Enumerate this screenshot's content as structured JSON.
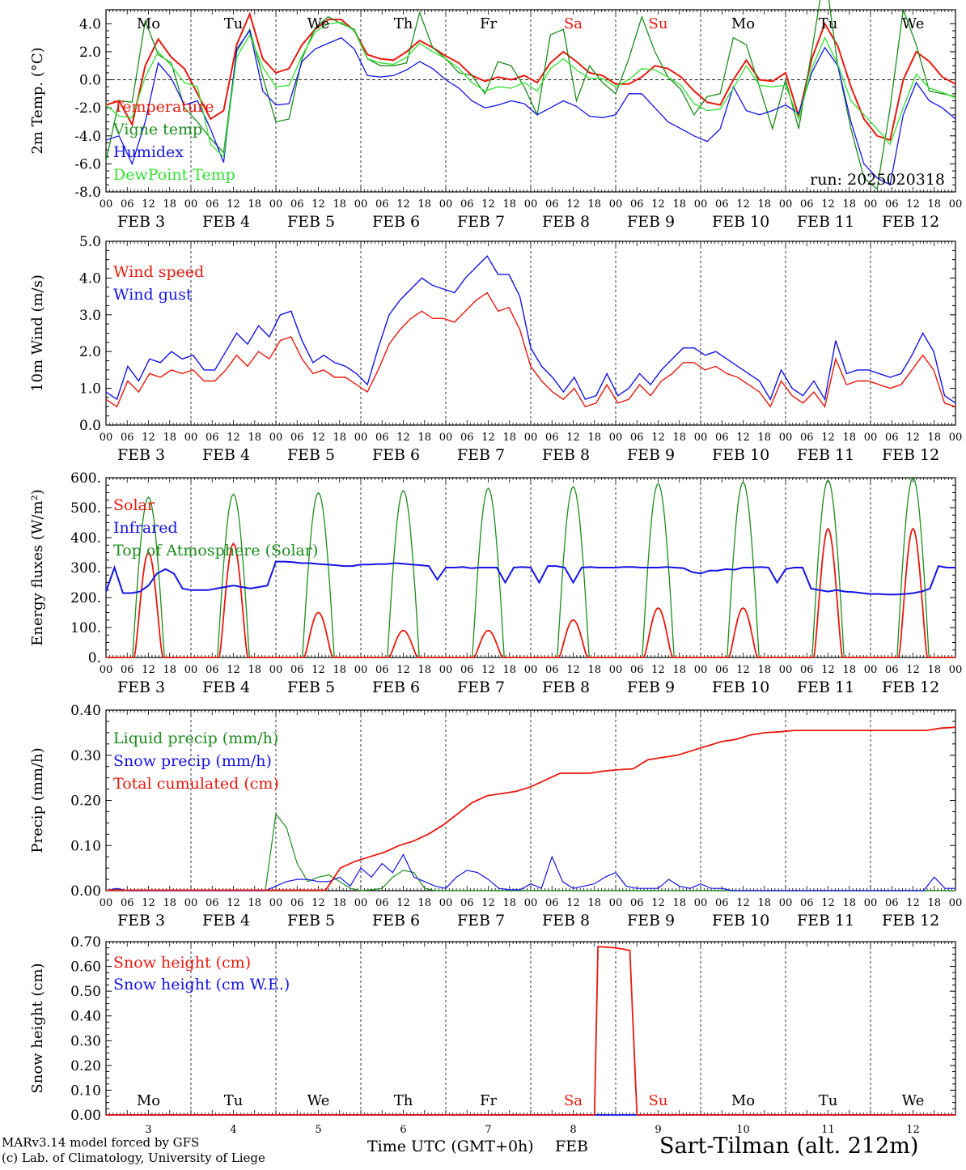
{
  "colors": {
    "red": "#e8190f",
    "green": "#1e8c1e",
    "blue": "#1414e6",
    "lightgreen": "#33e033",
    "weekend": "#e8190f",
    "text": "#000000"
  },
  "days": {
    "abbr": [
      "Mo",
      "Tu",
      "We",
      "Th",
      "Fr",
      "Sa",
      "Su",
      "Mo",
      "Tu",
      "We"
    ],
    "weekend_index": [
      5,
      6
    ],
    "numbers": [
      "3",
      "4",
      "5",
      "6",
      "7",
      "8",
      "9",
      "10",
      "11",
      "12"
    ],
    "date_labels": [
      "FEB  3",
      "FEB  4",
      "FEB  5",
      "FEB  6",
      "FEB  7",
      "FEB  8",
      "FEB  9",
      "FEB 10",
      "FEB 11",
      "FEB 12"
    ],
    "hour_ticks": [
      "00",
      "06",
      "12",
      "18"
    ],
    "final_tick": "00"
  },
  "footer": {
    "credit_line1": "MARv3.14 model forced by GFS",
    "credit_line2": "(c) Lab. of Climatology, University of Liege",
    "xaxis_label": "Time UTC (GMT+0h)",
    "month": "FEB",
    "station": "Sart-Tilman (alt. 212m)"
  },
  "chart_data": [
    {
      "type": "line",
      "ylabel": "2m Temp. (°C)",
      "ylim": [
        -8,
        5
      ],
      "ytick_values": [
        -8,
        -6,
        -4,
        -2,
        0,
        2,
        4
      ],
      "ytick_labels": [
        "-8.0",
        "-6.0",
        "-4.0",
        "-2.0",
        "0.0",
        "2.0",
        "4.0"
      ],
      "zero_line": true,
      "run_label": "run: 2025020318",
      "x_hours": [
        0,
        3,
        6,
        9,
        12,
        15,
        18,
        21,
        24,
        27,
        30,
        33,
        36,
        39,
        42,
        45,
        48,
        51,
        54,
        57,
        60,
        63,
        66,
        69,
        72,
        75,
        78,
        81,
        84,
        87,
        90,
        93,
        96,
        99,
        102,
        105,
        108,
        111,
        114,
        117,
        120,
        123,
        126,
        129,
        132,
        135,
        138,
        141,
        144,
        147,
        150,
        153,
        156,
        159,
        162,
        165,
        168,
        171,
        174,
        177,
        180,
        183,
        186,
        189,
        192,
        195,
        198,
        201,
        204,
        207,
        210,
        213,
        216,
        219,
        222,
        225,
        228,
        231,
        234,
        237,
        240
      ],
      "series": [
        {
          "name": "Temperature",
          "color": "red",
          "values": [
            -1.8,
            -1.5,
            -3.2,
            1.0,
            2.9,
            1.6,
            0.8,
            -1.0,
            -2.8,
            -2.2,
            2.5,
            4.7,
            1.5,
            0.5,
            0.8,
            2.5,
            3.6,
            4.3,
            4.3,
            3.5,
            1.8,
            1.5,
            1.4,
            2.0,
            2.8,
            2.3,
            1.7,
            1.2,
            0.3,
            -0.1,
            0.2,
            0.0,
            0.3,
            -0.2,
            1.2,
            2.0,
            1.3,
            0.5,
            0.3,
            -0.3,
            -0.3,
            0.2,
            1.0,
            0.8,
            0.2,
            -0.8,
            -1.6,
            -1.8,
            0.0,
            1.4,
            0.0,
            -0.1,
            0.5,
            -2.6,
            1.5,
            4.0,
            2.4,
            -0.5,
            -2.8,
            -4.0,
            -4.3,
            0.0,
            2.0,
            1.3,
            0.2,
            -0.3
          ]
        },
        {
          "name": "Vigne temp",
          "color": "green",
          "values": [
            -5.8,
            -1.5,
            -1.6,
            4.2,
            1.8,
            1.2,
            -2.0,
            -3.0,
            -4.2,
            -5.2,
            2.0,
            3.6,
            0.2,
            -3.0,
            -2.8,
            1.5,
            3.7,
            4.5,
            4.0,
            3.6,
            1.5,
            1.0,
            1.0,
            1.2,
            4.8,
            2.3,
            1.5,
            0.5,
            0.3,
            -1.0,
            1.3,
            1.0,
            -0.5,
            -2.5,
            3.2,
            3.6,
            -1.5,
            1.0,
            -0.2,
            -1.0,
            1.5,
            4.5,
            2.0,
            0.2,
            -0.7,
            -2.5,
            -1.2,
            -1.0,
            3.0,
            2.5,
            -0.5,
            -3.5,
            0.0,
            -3.5,
            2.0,
            7.8,
            1.0,
            -3.5,
            -7.0,
            -7.8,
            -2.0,
            5.0,
            2.5,
            -0.8,
            -1.0,
            -1.2
          ]
        },
        {
          "name": "Humidex",
          "color": "blue",
          "values": [
            -4.3,
            -4.0,
            -6.0,
            -3.0,
            1.2,
            0.1,
            -1.8,
            -1.5,
            -3.5,
            -5.9,
            2.2,
            3.5,
            -0.8,
            -1.8,
            -1.7,
            1.3,
            2.2,
            2.6,
            3.0,
            2.2,
            0.3,
            0.2,
            0.3,
            0.7,
            1.3,
            0.8,
            0.0,
            -0.6,
            -1.5,
            -2.0,
            -1.8,
            -1.5,
            -1.7,
            -2.5,
            -2.0,
            -1.5,
            -1.9,
            -2.6,
            -2.7,
            -2.5,
            -1.0,
            -1.0,
            -2.0,
            -3.0,
            -3.5,
            -4.0,
            -4.4,
            -3.5,
            -0.5,
            -2.2,
            -2.5,
            -2.2,
            -1.8,
            -2.4,
            0.5,
            2.3,
            1.0,
            -3.0,
            -6.0,
            -7.0,
            -7.5,
            -2.5,
            -0.2,
            -1.5,
            -2.0,
            -2.8
          ]
        },
        {
          "name": "DewPoint Temp",
          "color": "lightgreen",
          "values": [
            -1.8,
            -2.6,
            -2.7,
            0.2,
            2.0,
            1.0,
            -0.2,
            -0.5,
            -4.6,
            -5.5,
            1.6,
            3.2,
            0.9,
            -0.5,
            -0.4,
            1.7,
            3.4,
            4.0,
            4.1,
            3.5,
            1.5,
            1.2,
            1.1,
            1.6,
            2.6,
            2.0,
            1.5,
            0.8,
            -0.2,
            -0.8,
            -0.5,
            -0.6,
            -0.2,
            -0.8,
            0.8,
            1.5,
            0.7,
            0.1,
            0.1,
            -0.5,
            0.0,
            0.8,
            0.7,
            0.2,
            -0.4,
            -1.7,
            -2.2,
            -2.1,
            -0.6,
            1.0,
            -0.4,
            -0.5,
            -0.4,
            -2.8,
            0.8,
            3.0,
            1.1,
            -1.5,
            -2.5,
            -3.5,
            -4.6,
            -2.0,
            0.4,
            -0.6,
            -0.9,
            -1.3
          ]
        }
      ]
    },
    {
      "type": "line",
      "ylabel": "10m Wind (m/s)",
      "ylim": [
        0,
        5
      ],
      "ytick_values": [
        0,
        1,
        2,
        3,
        4,
        5
      ],
      "ytick_labels": [
        "0.0",
        "1.0",
        "2.0",
        "3.0",
        "4.0",
        "5.0"
      ],
      "series": [
        {
          "name": "Wind speed",
          "color": "red",
          "values": [
            0.7,
            0.5,
            1.2,
            0.9,
            1.4,
            1.3,
            1.5,
            1.4,
            1.5,
            1.2,
            1.2,
            1.5,
            1.9,
            1.6,
            2.0,
            1.8,
            2.3,
            2.4,
            1.8,
            1.4,
            1.5,
            1.3,
            1.3,
            1.1,
            0.9,
            1.5,
            2.2,
            2.6,
            2.9,
            3.1,
            2.9,
            2.9,
            2.8,
            3.1,
            3.4,
            3.6,
            3.1,
            3.2,
            2.6,
            1.6,
            1.2,
            0.9,
            0.7,
            1.0,
            0.5,
            0.6,
            1.1,
            0.6,
            0.7,
            1.1,
            0.8,
            1.2,
            1.4,
            1.7,
            1.7,
            1.5,
            1.6,
            1.4,
            1.3,
            1.1,
            0.9,
            0.5,
            1.2,
            0.8,
            0.6,
            0.9,
            0.5,
            1.8,
            1.1,
            1.2,
            1.2,
            1.1,
            1.0,
            1.1,
            1.5,
            1.9,
            1.5,
            0.6,
            0.5
          ]
        },
        {
          "name": "Wind gust",
          "color": "blue",
          "values": [
            0.9,
            0.7,
            1.6,
            1.2,
            1.8,
            1.7,
            2.0,
            1.8,
            1.9,
            1.5,
            1.5,
            2.0,
            2.5,
            2.2,
            2.7,
            2.4,
            3.0,
            3.1,
            2.3,
            1.7,
            1.9,
            1.7,
            1.6,
            1.4,
            1.1,
            2.1,
            3.0,
            3.4,
            3.7,
            4.0,
            3.8,
            3.7,
            3.6,
            4.0,
            4.3,
            4.6,
            4.1,
            4.1,
            3.5,
            2.1,
            1.6,
            1.3,
            0.9,
            1.3,
            0.7,
            0.8,
            1.4,
            0.8,
            1.0,
            1.4,
            1.1,
            1.5,
            1.8,
            2.1,
            2.1,
            1.9,
            2.0,
            1.8,
            1.6,
            1.4,
            1.2,
            0.7,
            1.5,
            1.0,
            0.8,
            1.2,
            0.7,
            2.3,
            1.4,
            1.5,
            1.5,
            1.4,
            1.3,
            1.4,
            1.9,
            2.5,
            2.0,
            0.8,
            0.6
          ]
        }
      ]
    },
    {
      "type": "line",
      "ylabel": "Energy fluxes (W/m²)",
      "ylim": [
        0,
        600
      ],
      "ytick_values": [
        0,
        100,
        200,
        300,
        400,
        500,
        600
      ],
      "ytick_labels": [
        "0.",
        "100.",
        "200.",
        "300.",
        "400.",
        "500.",
        "600."
      ],
      "series": [
        {
          "name": "Solar",
          "color": "red",
          "peaks": [
            350,
            380,
            150,
            90,
            90,
            125,
            165,
            165,
            430,
            430
          ]
        },
        {
          "name": "Infrared",
          "color": "blue",
          "values_by_day": [
            [
              220,
              300,
              215,
              215,
              220,
              240,
              280,
              295,
              280,
              230
            ],
            [
              225,
              225,
              225,
              230,
              235,
              240,
              235,
              230,
              235,
              240
            ],
            [
              320,
              320,
              318,
              315,
              315,
              312,
              310,
              308,
              305,
              305
            ],
            [
              310,
              310,
              312,
              312,
              315,
              313,
              310,
              308,
              305,
              260
            ],
            [
              300,
              300,
              302,
              298,
              300,
              300,
              300,
              250,
              300,
              302
            ],
            [
              300,
              250,
              305,
              305,
              300,
              250,
              300,
              302,
              300,
              300
            ],
            [
              300,
              302,
              302,
              300,
              300,
              300,
              302,
              300,
              298,
              285
            ],
            [
              280,
              290,
              290,
              295,
              293,
              300,
              300,
              302,
              300,
              250
            ],
            [
              295,
              300,
              300,
              230,
              225,
              220,
              225,
              220,
              218,
              215
            ],
            [
              212,
              212,
              210,
              210,
              212,
              215,
              220,
              230,
              305,
              300
            ]
          ]
        },
        {
          "name": "Top of Atmosphere (Solar)",
          "color": "green",
          "peaks": [
            535,
            545,
            550,
            557,
            565,
            570,
            580,
            585,
            592,
            600
          ]
        }
      ]
    },
    {
      "type": "line",
      "ylabel": "Precip (mm/h)",
      "ylim": [
        0,
        0.4
      ],
      "ytick_values": [
        0,
        0.1,
        0.2,
        0.3,
        0.4
      ],
      "ytick_labels": [
        "0.00",
        "0.10",
        "0.20",
        "0.30",
        "0.40"
      ],
      "series": [
        {
          "name": "Liquid precip (mm/h)",
          "color": "green",
          "values": [
            0,
            0.003,
            0,
            0,
            0,
            0,
            0,
            0,
            0,
            0,
            0,
            0,
            0,
            0,
            0,
            0,
            0.17,
            0.14,
            0.06,
            0.02,
            0.03,
            0.035,
            0.02,
            0.005,
            0,
            0.002,
            0.005,
            0.03,
            0.045,
            0.04,
            0.005,
            0,
            0,
            0,
            0,
            0,
            0,
            0,
            0,
            0,
            0,
            0,
            0,
            0,
            0,
            0,
            0,
            0,
            0,
            0,
            0,
            0,
            0,
            0,
            0,
            0,
            0,
            0,
            0,
            0,
            0,
            0,
            0,
            0,
            0,
            0,
            0,
            0,
            0,
            0,
            0,
            0,
            0,
            0,
            0,
            0,
            0,
            0,
            0,
            0,
            0
          ]
        },
        {
          "name": "Snow precip (mm/h)",
          "color": "blue",
          "values": [
            0,
            0.005,
            0,
            0,
            0,
            0,
            0,
            0,
            0,
            0,
            0,
            0,
            0,
            0,
            0,
            0,
            0.01,
            0.02,
            0.025,
            0.025,
            0.02,
            0.02,
            0.03,
            0.01,
            0.05,
            0.03,
            0.06,
            0.04,
            0.08,
            0.03,
            0.02,
            0.01,
            0.005,
            0.03,
            0.045,
            0.04,
            0.025,
            0.005,
            0.002,
            0.002,
            0.015,
            0.005,
            0.075,
            0.02,
            0.005,
            0.01,
            0.015,
            0.03,
            0.04,
            0.01,
            0.005,
            0.005,
            0.005,
            0.025,
            0.01,
            0.005,
            0.015,
            0.005,
            0.005,
            0,
            0,
            0,
            0,
            0,
            0,
            0,
            0,
            0,
            0,
            0,
            0,
            0,
            0,
            0,
            0,
            0,
            0,
            0,
            0.03,
            0.005,
            0.005
          ]
        },
        {
          "name": "Total cumulated (cm)",
          "color": "red",
          "values": [
            0.001,
            0.001,
            0.001,
            0.001,
            0.001,
            0.001,
            0.001,
            0.001,
            0.001,
            0.001,
            0.001,
            0.001,
            0.001,
            0.001,
            0.001,
            0.001,
            0.05,
            0.065,
            0.075,
            0.085,
            0.1,
            0.11,
            0.125,
            0.145,
            0.17,
            0.195,
            0.21,
            0.215,
            0.22,
            0.23,
            0.245,
            0.26,
            0.26,
            0.26,
            0.265,
            0.268,
            0.27,
            0.29,
            0.295,
            0.3,
            0.31,
            0.32,
            0.33,
            0.335,
            0.345,
            0.35,
            0.352,
            0.355,
            0.355,
            0.355,
            0.355,
            0.355,
            0.355,
            0.355,
            0.355,
            0.355,
            0.355,
            0.36,
            0.362
          ]
        }
      ]
    },
    {
      "type": "line",
      "ylabel": "Snow height (cm)",
      "ylim": [
        0,
        0.7
      ],
      "ytick_values": [
        0,
        0.1,
        0.2,
        0.3,
        0.4,
        0.5,
        0.6,
        0.7
      ],
      "ytick_labels": [
        "0.00",
        "0.10",
        "0.20",
        "0.30",
        "0.40",
        "0.50",
        "0.60",
        "0.70"
      ],
      "series": [
        {
          "name": "Snow height (cm)",
          "color": "red",
          "points": [
            [
              0,
              0
            ],
            [
              138,
              0
            ],
            [
              139,
              0.68
            ],
            [
              144,
              0.675
            ],
            [
              148,
              0.665
            ],
            [
              150,
              0
            ],
            [
              240,
              0
            ]
          ]
        },
        {
          "name": "Snow height (cm W.E.)",
          "color": "blue",
          "points": [
            [
              0,
              0
            ],
            [
              240,
              0
            ]
          ]
        }
      ]
    }
  ]
}
